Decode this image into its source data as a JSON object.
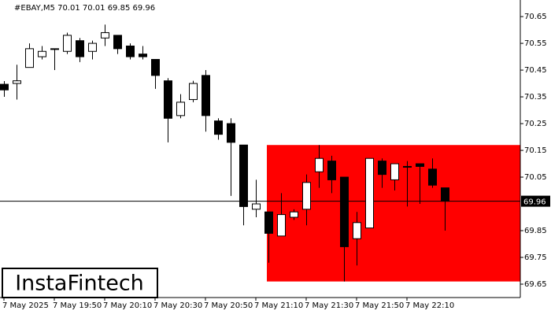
{
  "chart_data": {
    "type": "candlestick",
    "title": "#EBAY,M5  70.01 70.01 69.85 69.96",
    "categories": [
      "7 May 2025",
      null,
      null,
      null,
      "7 May 19:50",
      null,
      null,
      null,
      "7 May 20:10",
      null,
      null,
      null,
      "7 May 20:30",
      null,
      null,
      null,
      "7 May 20:50",
      null,
      null,
      null,
      "7 May 21:10",
      null,
      null,
      null,
      "7 May 21:30",
      null,
      null,
      null,
      "7 May 21:50",
      null,
      null,
      null,
      "7 May 22:10",
      null,
      null,
      null
    ],
    "open": [
      70.397,
      70.4,
      70.46,
      70.5,
      70.53,
      70.52,
      70.56,
      70.52,
      70.57,
      70.58,
      70.54,
      70.51,
      70.49,
      70.41,
      70.28,
      70.34,
      70.43,
      70.26,
      70.25,
      70.17,
      69.93,
      69.92,
      69.83,
      69.9,
      69.93,
      70.07,
      70.11,
      70.05,
      69.82,
      69.86,
      70.11,
      70.04,
      70.09,
      70.1,
      70.08,
      70.01
    ],
    "high": [
      70.409,
      70.47,
      70.55,
      70.54,
      70.53,
      70.59,
      70.57,
      70.56,
      70.62,
      70.58,
      70.55,
      70.54,
      70.49,
      70.42,
      70.36,
      70.41,
      70.45,
      70.27,
      70.27,
      70.17,
      70.04,
      69.92,
      69.99,
      69.93,
      70.06,
      70.17,
      70.13,
      70.05,
      69.92,
      70.12,
      70.12,
      70.1,
      70.11,
      70.1,
      70.12,
      70.01
    ],
    "low": [
      70.35,
      70.34,
      70.46,
      70.49,
      70.45,
      70.51,
      70.48,
      70.49,
      70.54,
      70.51,
      70.49,
      70.49,
      70.38,
      70.18,
      70.27,
      70.33,
      70.22,
      70.19,
      69.98,
      69.87,
      69.9,
      69.73,
      69.83,
      69.89,
      69.87,
      70.01,
      69.99,
      69.66,
      69.72,
      69.86,
      70.01,
      70.0,
      69.94,
      69.95,
      70.01,
      69.85
    ],
    "close": [
      70.376,
      70.41,
      70.53,
      70.52,
      70.53,
      70.58,
      70.5,
      70.55,
      70.59,
      70.53,
      70.5,
      70.5,
      70.43,
      70.27,
      70.33,
      70.4,
      70.28,
      70.21,
      70.18,
      69.94,
      69.95,
      69.84,
      69.91,
      69.92,
      70.03,
      70.12,
      70.04,
      69.79,
      69.88,
      70.12,
      70.06,
      70.1,
      70.09,
      70.09,
      70.02,
      69.96
    ],
    "up_color": "#ffffff",
    "down_color": "#000000",
    "ylim": [
      69.6,
      70.712
    ],
    "yticks": [
      70.65,
      70.55,
      70.45,
      70.35,
      70.25,
      70.15,
      70.05,
      69.85,
      69.75,
      69.65
    ],
    "last": 69.96,
    "zone": {
      "top": 70.17,
      "bottom": 69.66,
      "start": 21,
      "color": "#ff0000"
    }
  },
  "brand": "InstaFintech"
}
